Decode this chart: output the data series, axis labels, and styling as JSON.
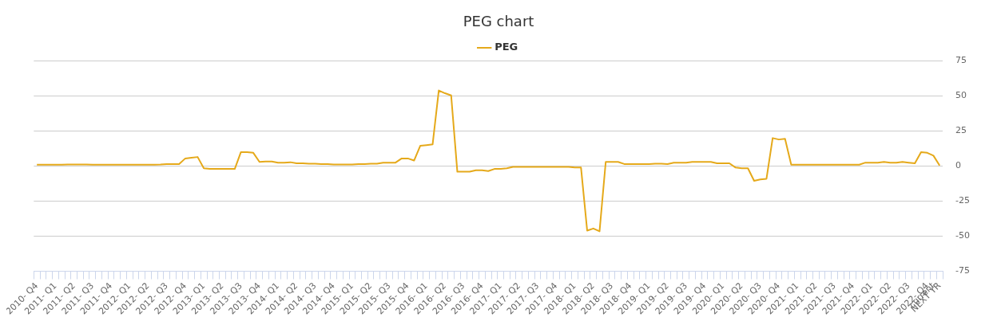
{
  "chart_data": {
    "type": "line",
    "title": "PEG chart",
    "categories": [
      "2010- Q4",
      null,
      null,
      "2011- Q1",
      null,
      null,
      "2011- Q2",
      null,
      null,
      "2011- Q3",
      null,
      null,
      "2011- Q4",
      null,
      null,
      "2012- Q1",
      null,
      null,
      "2012- Q2",
      null,
      null,
      "2012- Q3",
      null,
      null,
      "2012- Q4",
      null,
      null,
      "2013- Q1",
      null,
      null,
      "2013- Q2",
      null,
      null,
      "2013- Q3",
      null,
      null,
      "2013- Q4",
      null,
      null,
      "2014- Q1",
      null,
      null,
      "2014- Q2",
      null,
      null,
      "2014- Q3",
      null,
      null,
      "2014- Q4",
      null,
      null,
      "2015- Q1",
      null,
      null,
      "2015- Q2",
      null,
      null,
      "2015- Q3",
      null,
      null,
      "2015- Q4",
      null,
      null,
      "2016- Q1",
      null,
      null,
      "2016- Q2",
      null,
      null,
      "2016- Q3",
      null,
      null,
      "2016- Q4",
      null,
      null,
      "2017- Q1",
      null,
      null,
      "2017- Q2",
      null,
      null,
      "2017- Q3",
      null,
      null,
      "2017- Q4",
      null,
      null,
      "2018- Q1",
      null,
      null,
      "2018- Q2",
      null,
      null,
      "2018- Q3",
      null,
      null,
      "2018- Q4",
      null,
      null,
      "2019- Q1",
      null,
      null,
      "2019- Q2",
      null,
      null,
      "2019- Q3",
      null,
      null,
      "2019- Q4",
      null,
      null,
      "2020- Q1",
      null,
      null,
      "2020- Q2",
      null,
      null,
      "2020- Q3",
      null,
      null,
      "2020- Q4",
      null,
      null,
      "2021- Q1",
      null,
      null,
      "2021- Q2",
      null,
      null,
      "2021- Q3",
      null,
      null,
      "2021- Q4",
      null,
      null,
      "2022- Q1",
      null,
      null,
      "2022- Q2",
      null,
      null,
      "2022- Q3",
      null,
      null,
      "2022- Q4",
      "current",
      "NEXT YR"
    ],
    "series": [
      {
        "name": "PEG",
        "color": "#e5a91a",
        "values": [
          1,
          1,
          1,
          1,
          1,
          1.2,
          1.2,
          1.2,
          1.2,
          1,
          1,
          1,
          1,
          1,
          1,
          1,
          1,
          1,
          1,
          1,
          1.2,
          1.5,
          1.5,
          1.5,
          5.5,
          6,
          6.5,
          -1.5,
          -2,
          -2,
          -2,
          -2,
          -2,
          10,
          10,
          9.5,
          3,
          3.3,
          3.3,
          2.5,
          2.5,
          2.8,
          2,
          2,
          1.8,
          1.8,
          1.5,
          1.5,
          1.2,
          1.2,
          1.2,
          1.2,
          1.5,
          1.5,
          1.8,
          1.8,
          2.5,
          2.5,
          2.5,
          5.5,
          5.5,
          4,
          14.5,
          15,
          15.5,
          54,
          52,
          50.5,
          -4,
          -4,
          -4,
          -3,
          -3,
          -3.5,
          -2,
          -2,
          -1.5,
          -0.5,
          -0.5,
          -0.5,
          -0.5,
          -0.5,
          -0.5,
          -0.5,
          -0.5,
          -0.5,
          -0.5,
          -1,
          -1,
          -46,
          -44.5,
          -46.5,
          3,
          3,
          3,
          1.5,
          1.5,
          1.5,
          1.5,
          1.5,
          1.8,
          1.8,
          1.5,
          2.5,
          2.5,
          2.5,
          3,
          3,
          3,
          3,
          2,
          2,
          2,
          -1,
          -1.5,
          -1.5,
          -10.5,
          -9.5,
          -9,
          20,
          19,
          19.5,
          1,
          1,
          1,
          1,
          1,
          1,
          1,
          1,
          1,
          1,
          1,
          1,
          2.5,
          2.5,
          2.5,
          3,
          2.5,
          2.5,
          3,
          2.5,
          2,
          10,
          9.5,
          7.5,
          0.5
        ]
      }
    ],
    "ylim": [
      -75,
      75
    ],
    "yticks": [
      -75,
      -50,
      -25,
      0,
      25,
      50,
      75
    ],
    "grid": "y",
    "legend": "top",
    "marker": "none",
    "line_style": "solid"
  }
}
